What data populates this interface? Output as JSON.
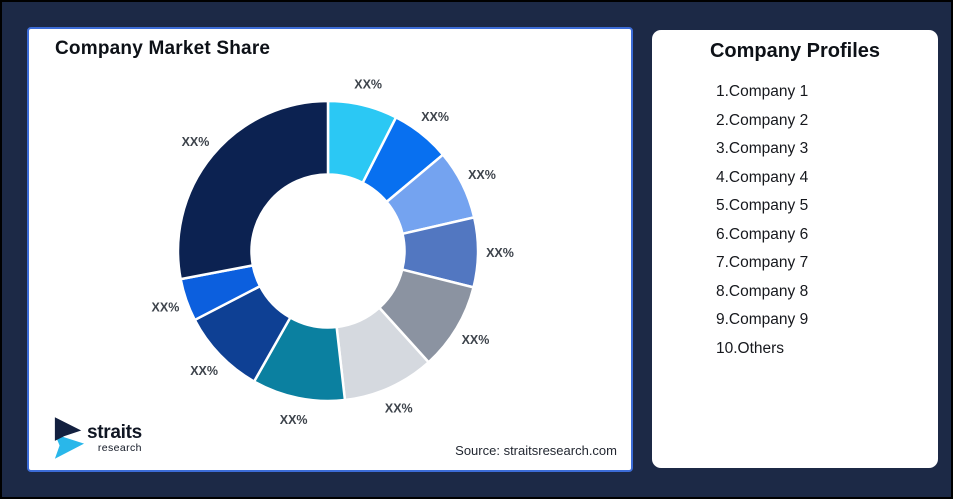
{
  "page": {
    "background_color": "#1C2946",
    "frame_border_color": "#000000"
  },
  "market_share_card": {
    "title": "Company Market Share",
    "source": "Source: straitsresearch.com",
    "border_color": "#3C6CD7",
    "background_color": "#FFFFFF"
  },
  "logo": {
    "name": "straits",
    "sub": "research",
    "navy_color": "#13203F",
    "cyan_color": "#29B7EA"
  },
  "profiles": {
    "title": "Company Profiles",
    "items": [
      "1.Company 1",
      "2.Company 2",
      "3.Company 3",
      "4.Company 4",
      "5.Company 5",
      "6.Company 6",
      "7.Company 7",
      "8.Company 8",
      "9.Company 9",
      "10.Others"
    ]
  },
  "chart_data": {
    "type": "pie",
    "subtype": "donut",
    "title": "Company Market Share",
    "unit": "%",
    "direction": "clockwise_from_top",
    "inner_radius_ratio": 0.51,
    "label_color": "#3D434B",
    "legend": "none",
    "all_labels_masked_as": "XX%",
    "segments": [
      {
        "label": "XX%",
        "value_pct_est": 7.5,
        "color": "#2BC8F4"
      },
      {
        "label": "XX%",
        "value_pct_est": 6.4,
        "color": "#0870F0"
      },
      {
        "label": "XX%",
        "value_pct_est": 7.5,
        "color": "#74A3F0"
      },
      {
        "label": "XX%",
        "value_pct_est": 7.5,
        "color": "#5277C1"
      },
      {
        "label": "XX%",
        "value_pct_est": 9.4,
        "color": "#8B93A1"
      },
      {
        "label": "XX%",
        "value_pct_est": 9.9,
        "color": "#D5D9DF"
      },
      {
        "label": "XX%",
        "value_pct_est": 10.0,
        "color": "#0B80A0"
      },
      {
        "label": "XX%",
        "value_pct_est": 9.2,
        "color": "#0E4094"
      },
      {
        "label": "XX%",
        "value_pct_est": 4.6,
        "color": "#0C5FDE"
      },
      {
        "label": "XX%",
        "value_pct_est": 28.0,
        "color": "#0C2251"
      }
    ]
  }
}
